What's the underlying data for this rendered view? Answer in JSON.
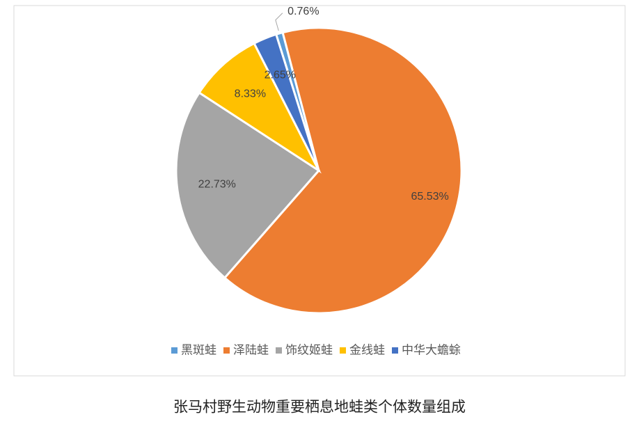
{
  "chart_data": {
    "type": "pie",
    "title": "张马村野生动物重要栖息地蛙类个体数量组成",
    "categories": [
      "黑斑蛙",
      "泽陆蛙",
      "饰纹姬蛙",
      "金线蛙",
      "中华大蟾蜍"
    ],
    "values": [
      0.76,
      65.53,
      22.73,
      8.33,
      2.65
    ],
    "value_labels": [
      "0.76%",
      "65.53%",
      "22.73%",
      "8.33%",
      "2.65%"
    ],
    "colors": [
      "#5b9bd5",
      "#ed7d31",
      "#a5a5a5",
      "#ffc000",
      "#4472c4"
    ],
    "legend": "bottom"
  }
}
